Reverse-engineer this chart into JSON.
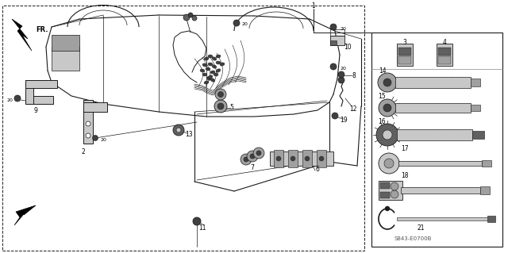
{
  "bg_color": "#ffffff",
  "line_color": "#1a1a1a",
  "diagram_code": "S843-E0700B",
  "gray_light": "#c8c8c8",
  "gray_mid": "#a0a0a0",
  "gray_dark": "#606060",
  "gray_darker": "#404040"
}
